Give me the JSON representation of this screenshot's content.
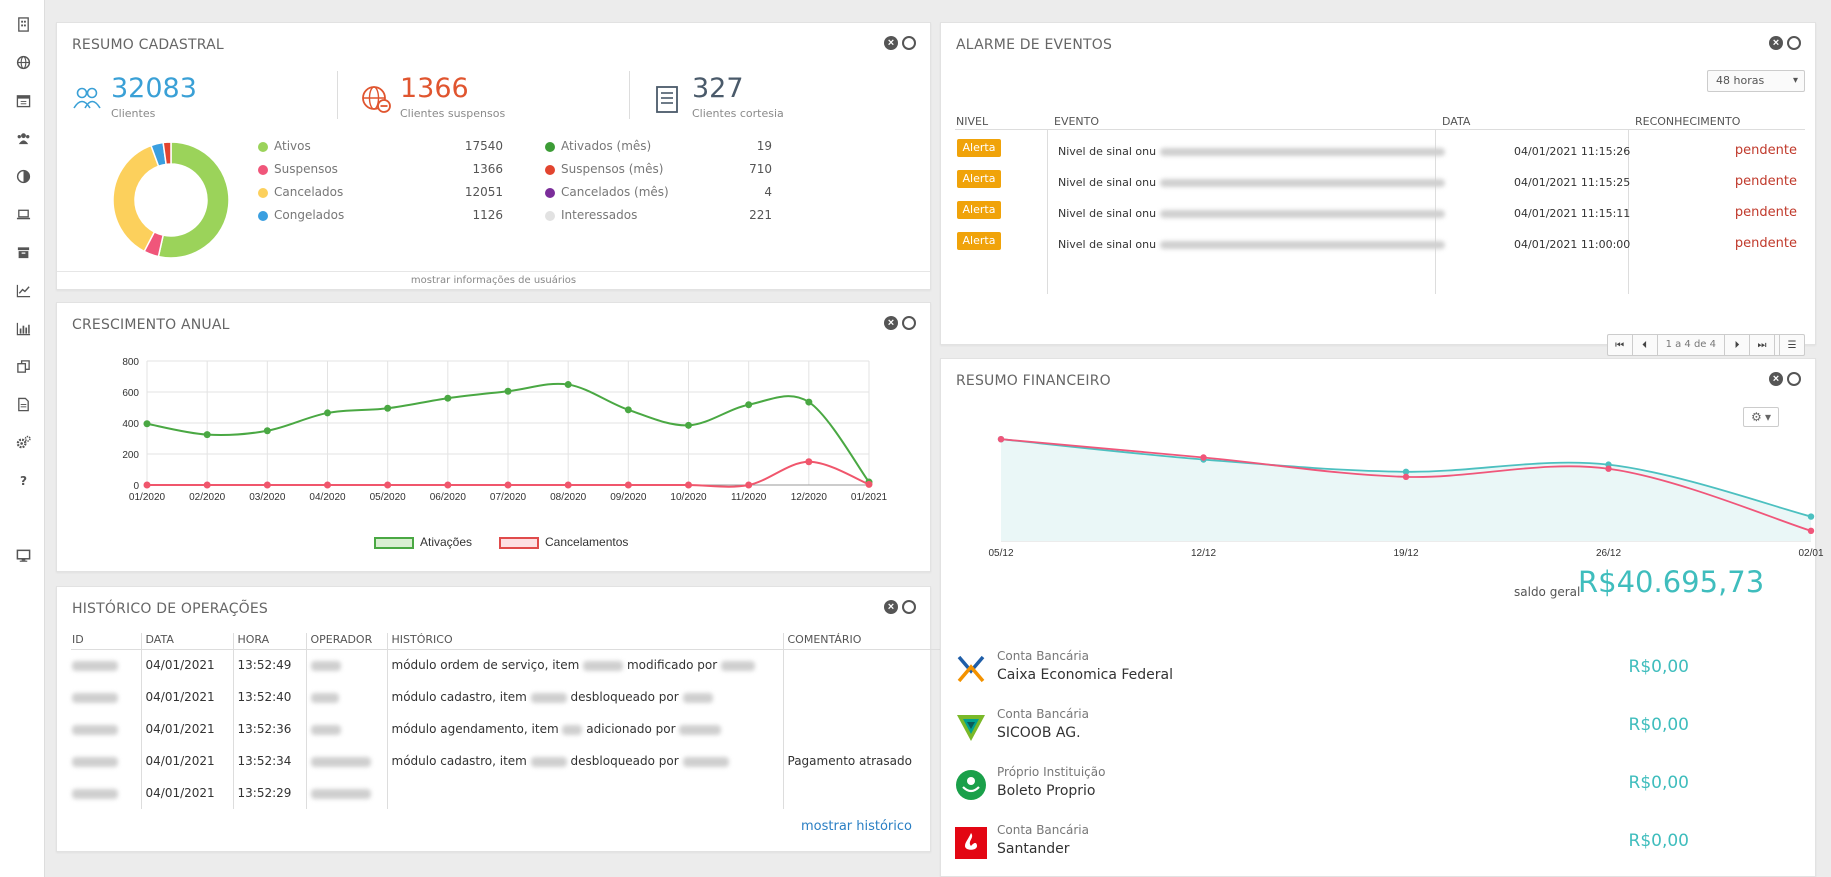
{
  "sidebar": {
    "items": [
      {
        "icon": "building-icon"
      },
      {
        "icon": "globe-icon"
      },
      {
        "icon": "calendar-icon"
      },
      {
        "icon": "users-icon"
      },
      {
        "icon": "contrast-icon"
      },
      {
        "icon": "laptop-icon"
      },
      {
        "icon": "archive-icon"
      },
      {
        "icon": "line-chart-icon"
      },
      {
        "icon": "bar-chart-icon"
      },
      {
        "icon": "copy-icon"
      },
      {
        "icon": "document-icon"
      },
      {
        "icon": "gears-icon"
      },
      {
        "icon": "question-icon"
      },
      {
        "icon": "monitor-icon"
      }
    ]
  },
  "resumo": {
    "title": "RESUMO CADASTRAL",
    "stats": [
      {
        "value": "32083",
        "label": "Clientes",
        "color": "#3aa0d6"
      },
      {
        "value": "1366",
        "label": "Clientes suspensos",
        "color": "#e0552f"
      },
      {
        "value": "327",
        "label": "Clientes cortesia",
        "color": "#4a5a6a"
      }
    ],
    "legend_left": [
      {
        "name": "Ativos",
        "value": "17540",
        "color": "#9bd35a"
      },
      {
        "name": "Suspensos",
        "value": "1366",
        "color": "#f0567a"
      },
      {
        "name": "Cancelados",
        "value": "12051",
        "color": "#fcd05c"
      },
      {
        "name": "Congelados",
        "value": "1126",
        "color": "#3a9fe0"
      }
    ],
    "legend_right": [
      {
        "name": "Ativados (mês)",
        "value": "19",
        "color": "#3c9c36"
      },
      {
        "name": "Suspensos (mês)",
        "value": "710",
        "color": "#e2442f"
      },
      {
        "name": "Cancelados (mês)",
        "value": "4",
        "color": "#7b2d9a"
      },
      {
        "name": "Interessados",
        "value": "221",
        "color": "#e2e2e2"
      }
    ],
    "footer_link": "mostrar informações de usuários"
  },
  "crescimento": {
    "title": "CRESCIMENTO ANUAL",
    "legend": [
      "Ativações",
      "Cancelamentos"
    ]
  },
  "chart_data": [
    {
      "type": "pie",
      "labels": [
        "Ativos",
        "Suspensos",
        "Cancelados",
        "Congelados",
        "Suspensos (mês)"
      ],
      "values": [
        17540,
        1366,
        12051,
        1126,
        710
      ],
      "colors": [
        "#9bd35a",
        "#f0567a",
        "#fcd05c",
        "#3a9fe0",
        "#e2442f"
      ]
    },
    {
      "type": "line",
      "title": "",
      "categories": [
        "01/2020",
        "02/2020",
        "03/2020",
        "04/2020",
        "05/2020",
        "06/2020",
        "07/2020",
        "08/2020",
        "09/2020",
        "10/2020",
        "11/2020",
        "12/2020",
        "01/2021"
      ],
      "series": [
        {
          "name": "Ativações",
          "values": [
            395,
            325,
            350,
            465,
            495,
            560,
            605,
            648,
            485,
            385,
            518,
            535,
            19
          ],
          "color": "#4aa843"
        },
        {
          "name": "Cancelamentos",
          "values": [
            0,
            0,
            0,
            0,
            0,
            0,
            0,
            0,
            0,
            0,
            0,
            150,
            4
          ],
          "color": "#f0566c"
        }
      ],
      "ylim": [
        0,
        800
      ],
      "yticks": [
        "800",
        "600",
        "400",
        "200",
        "0"
      ],
      "grid": true,
      "legend": "bottom"
    },
    {
      "type": "area",
      "categories": [
        "05/12",
        "12/12",
        "19/12",
        "26/12",
        "02/01"
      ],
      "series": [
        {
          "name": "",
          "values": [
            100,
            80,
            68,
            75,
            24
          ],
          "color": "#4cc0c0"
        },
        {
          "name": "",
          "values": [
            100,
            82,
            63,
            71,
            10
          ],
          "color": "#f0567a"
        }
      ]
    }
  ],
  "historico": {
    "title": "HISTÓRICO DE OPERAÇÕES",
    "columns": [
      "ID",
      "DATA",
      "HORA",
      "OPERADOR",
      "HISTÓRICO",
      "COMENTÁRIO"
    ],
    "rows": [
      {
        "data": "04/01/2021",
        "hora": "13:52:49",
        "h1": "módulo ordem de serviço, item",
        "h2": "modificado por",
        "comentario": ""
      },
      {
        "data": "04/01/2021",
        "hora": "13:52:40",
        "h1": "módulo cadastro, item",
        "h2": "desbloqueado por",
        "comentario": ""
      },
      {
        "data": "04/01/2021",
        "hora": "13:52:36",
        "h1": "módulo agendamento, item",
        "h2": "adicionado por",
        "comentario": ""
      },
      {
        "data": "04/01/2021",
        "hora": "13:52:34",
        "h1": "módulo cadastro, item",
        "h2": "desbloqueado por",
        "comentario": "Pagamento atrasado"
      },
      {
        "data": "04/01/2021",
        "hora": "13:52:29",
        "h1": "",
        "h2": "",
        "comentario": ""
      }
    ],
    "link": "mostrar histórico"
  },
  "alarme": {
    "title": "ALARME DE EVENTOS",
    "select": "48 horas",
    "columns": [
      "NIVEL",
      "EVENTO",
      "DATA",
      "RECONHECIMENTO"
    ],
    "rows": [
      {
        "nivel": "Alerta",
        "evento": "Nivel de sinal onu",
        "data": "04/01/2021 11:15:26",
        "status": "pendente"
      },
      {
        "nivel": "Alerta",
        "evento": "Nivel de sinal onu",
        "data": "04/01/2021 11:15:25",
        "status": "pendente"
      },
      {
        "nivel": "Alerta",
        "evento": "Nivel de sinal onu",
        "data": "04/01/2021 11:15:11",
        "status": "pendente"
      },
      {
        "nivel": "Alerta",
        "evento": "Nivel de sinal onu",
        "data": "04/01/2021 11:00:00",
        "status": "pendente"
      }
    ],
    "pager_text": "1 a 4 de 4"
  },
  "financeiro": {
    "title": "RESUMO FINANCEIRO",
    "saldo_label": "saldo geral",
    "saldo_value": "R$40.695,73",
    "accounts": [
      {
        "type": "Conta Bancária",
        "name": "Caixa Economica Federal",
        "amount": "R$0,00",
        "logo": "caixa-logo-icon"
      },
      {
        "type": "Conta Bancária",
        "name": "SICOOB AG.",
        "amount": "R$0,00",
        "logo": "sicoob-logo-icon"
      },
      {
        "type": "Próprio Instituição",
        "name": "Boleto Proprio",
        "amount": "R$0,00",
        "logo": "boleto-logo-icon"
      },
      {
        "type": "Conta Bancária",
        "name": "Santander",
        "amount": "R$0,00",
        "logo": "santander-logo-icon"
      }
    ]
  }
}
